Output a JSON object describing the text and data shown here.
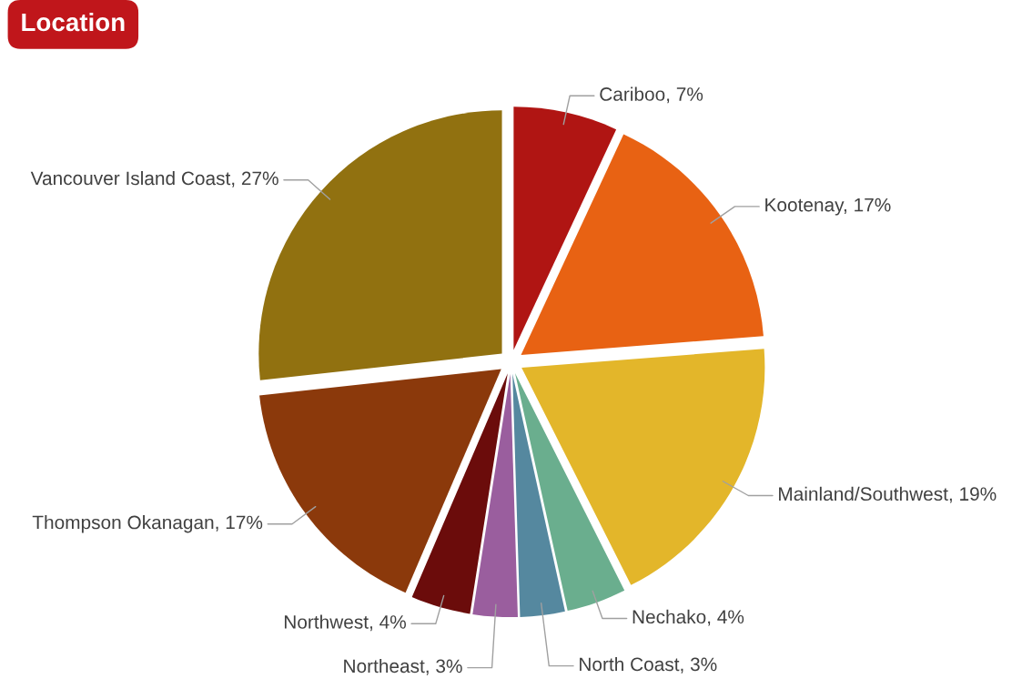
{
  "chart_data": {
    "type": "pie",
    "title": "Location",
    "categories": [
      "Cariboo",
      "Kootenay",
      "Mainland/Southwest",
      "Nechako",
      "North Coast",
      "Northeast",
      "Northwest",
      "Thompson Okanagan",
      "Vancouver Island Coast"
    ],
    "values": [
      7,
      17,
      19,
      4,
      3,
      3,
      4,
      17,
      27
    ],
    "value_labels": [
      "7%",
      "17%",
      "19%",
      "4%",
      "3%",
      "3%",
      "4%",
      "17%",
      "27%"
    ],
    "colors": [
      "#b01513",
      "#e86213",
      "#e3b62a",
      "#6aae8e",
      "#55889f",
      "#9a5e9e",
      "#6b0c0b",
      "#8b390b",
      "#917110"
    ],
    "legend": false
  }
}
